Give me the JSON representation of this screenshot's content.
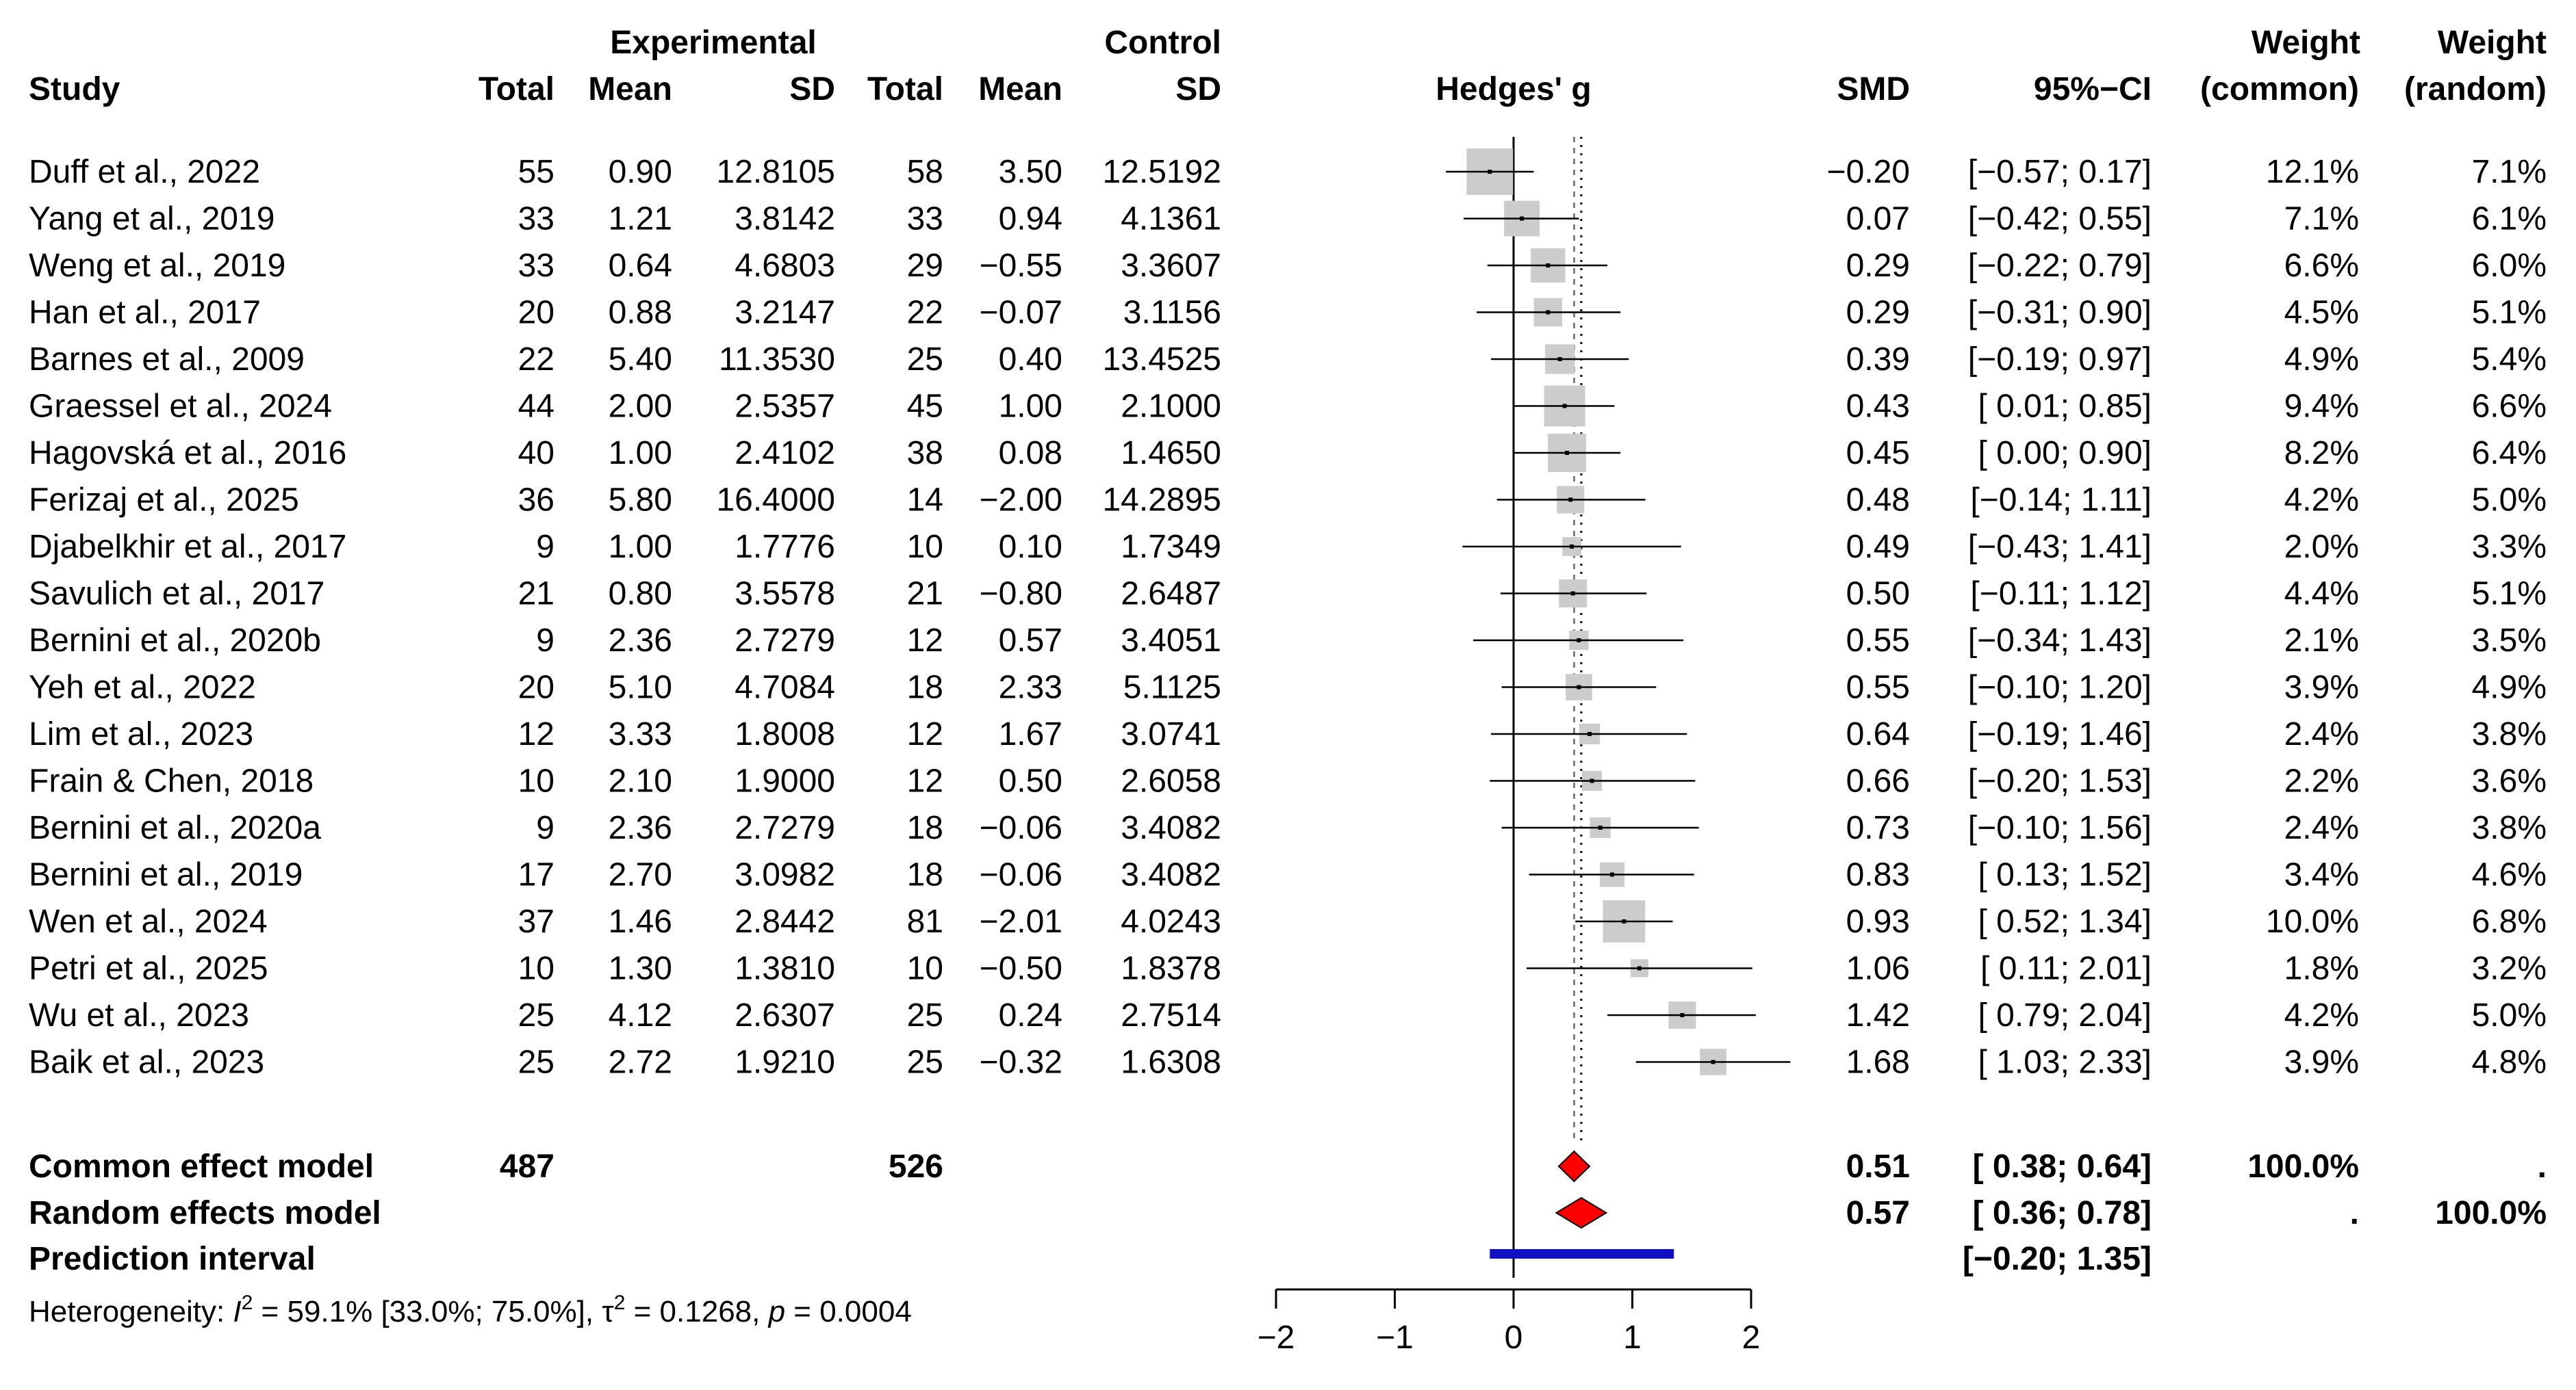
{
  "chart_data": {
    "type": "forest",
    "measure_label": "Hedges' g",
    "headers": {
      "experimental": "Experimental",
      "control": "Control",
      "study": "Study",
      "total": "Total",
      "mean": "Mean",
      "sd": "SD",
      "smd": "SMD",
      "ci": "95%−CI",
      "weight": "Weight",
      "weight_common": "(common)",
      "weight_random": "(random)"
    },
    "studies": [
      {
        "study": "Duff et al., 2022",
        "e_total": "55",
        "e_mean": "0.90",
        "e_sd": "12.8105",
        "c_total": "58",
        "c_mean": "3.50",
        "c_sd": "12.5192",
        "smd_text": "−0.20",
        "ci_text": "[−0.57; 0.17]",
        "w_common": "12.1%",
        "w_random": "7.1%",
        "smd": -0.2,
        "lo": -0.57,
        "hi": 0.17,
        "weight": 12.1
      },
      {
        "study": "Yang et al., 2019",
        "e_total": "33",
        "e_mean": "1.21",
        "e_sd": "3.8142",
        "c_total": "33",
        "c_mean": "0.94",
        "c_sd": "4.1361",
        "smd_text": "0.07",
        "ci_text": "[−0.42; 0.55]",
        "w_common": "7.1%",
        "w_random": "6.1%",
        "smd": 0.07,
        "lo": -0.42,
        "hi": 0.55,
        "weight": 7.1
      },
      {
        "study": "Weng et al., 2019",
        "e_total": "33",
        "e_mean": "0.64",
        "e_sd": "4.6803",
        "c_total": "29",
        "c_mean": "−0.55",
        "c_sd": "3.3607",
        "smd_text": "0.29",
        "ci_text": "[−0.22; 0.79]",
        "w_common": "6.6%",
        "w_random": "6.0%",
        "smd": 0.29,
        "lo": -0.22,
        "hi": 0.79,
        "weight": 6.6
      },
      {
        "study": "Han et al., 2017",
        "e_total": "20",
        "e_mean": "0.88",
        "e_sd": "3.2147",
        "c_total": "22",
        "c_mean": "−0.07",
        "c_sd": "3.1156",
        "smd_text": "0.29",
        "ci_text": "[−0.31; 0.90]",
        "w_common": "4.5%",
        "w_random": "5.1%",
        "smd": 0.29,
        "lo": -0.31,
        "hi": 0.9,
        "weight": 4.5
      },
      {
        "study": "Barnes et al., 2009",
        "e_total": "22",
        "e_mean": "5.40",
        "e_sd": "11.3530",
        "c_total": "25",
        "c_mean": "0.40",
        "c_sd": "13.4525",
        "smd_text": "0.39",
        "ci_text": "[−0.19; 0.97]",
        "w_common": "4.9%",
        "w_random": "5.4%",
        "smd": 0.39,
        "lo": -0.19,
        "hi": 0.97,
        "weight": 4.9
      },
      {
        "study": "Graessel et al., 2024",
        "e_total": "44",
        "e_mean": "2.00",
        "e_sd": "2.5357",
        "c_total": "45",
        "c_mean": "1.00",
        "c_sd": "2.1000",
        "smd_text": "0.43",
        "ci_text": "[ 0.01; 0.85]",
        "w_common": "9.4%",
        "w_random": "6.6%",
        "smd": 0.43,
        "lo": 0.01,
        "hi": 0.85,
        "weight": 9.4
      },
      {
        "study": "Hagovská et al., 2016",
        "e_total": "40",
        "e_mean": "1.00",
        "e_sd": "2.4102",
        "c_total": "38",
        "c_mean": "0.08",
        "c_sd": "1.4650",
        "smd_text": "0.45",
        "ci_text": "[ 0.00; 0.90]",
        "w_common": "8.2%",
        "w_random": "6.4%",
        "smd": 0.45,
        "lo": 0.0,
        "hi": 0.9,
        "weight": 8.2
      },
      {
        "study": "Ferizaj et al., 2025",
        "e_total": "36",
        "e_mean": "5.80",
        "e_sd": "16.4000",
        "c_total": "14",
        "c_mean": "−2.00",
        "c_sd": "14.2895",
        "smd_text": "0.48",
        "ci_text": "[−0.14; 1.11]",
        "w_common": "4.2%",
        "w_random": "5.0%",
        "smd": 0.48,
        "lo": -0.14,
        "hi": 1.11,
        "weight": 4.2
      },
      {
        "study": "Djabelkhir et al., 2017",
        "e_total": "9",
        "e_mean": "1.00",
        "e_sd": "1.7776",
        "c_total": "10",
        "c_mean": "0.10",
        "c_sd": "1.7349",
        "smd_text": "0.49",
        "ci_text": "[−0.43; 1.41]",
        "w_common": "2.0%",
        "w_random": "3.3%",
        "smd": 0.49,
        "lo": -0.43,
        "hi": 1.41,
        "weight": 2.0
      },
      {
        "study": "Savulich et al., 2017",
        "e_total": "21",
        "e_mean": "0.80",
        "e_sd": "3.5578",
        "c_total": "21",
        "c_mean": "−0.80",
        "c_sd": "2.6487",
        "smd_text": "0.50",
        "ci_text": "[−0.11; 1.12]",
        "w_common": "4.4%",
        "w_random": "5.1%",
        "smd": 0.5,
        "lo": -0.11,
        "hi": 1.12,
        "weight": 4.4
      },
      {
        "study": "Bernini et al., 2020b",
        "e_total": "9",
        "e_mean": "2.36",
        "e_sd": "2.7279",
        "c_total": "12",
        "c_mean": "0.57",
        "c_sd": "3.4051",
        "smd_text": "0.55",
        "ci_text": "[−0.34; 1.43]",
        "w_common": "2.1%",
        "w_random": "3.5%",
        "smd": 0.55,
        "lo": -0.34,
        "hi": 1.43,
        "weight": 2.1
      },
      {
        "study": "Yeh et al., 2022",
        "e_total": "20",
        "e_mean": "5.10",
        "e_sd": "4.7084",
        "c_total": "18",
        "c_mean": "2.33",
        "c_sd": "5.1125",
        "smd_text": "0.55",
        "ci_text": "[−0.10; 1.20]",
        "w_common": "3.9%",
        "w_random": "4.9%",
        "smd": 0.55,
        "lo": -0.1,
        "hi": 1.2,
        "weight": 3.9
      },
      {
        "study": "Lim et al., 2023",
        "e_total": "12",
        "e_mean": "3.33",
        "e_sd": "1.8008",
        "c_total": "12",
        "c_mean": "1.67",
        "c_sd": "3.0741",
        "smd_text": "0.64",
        "ci_text": "[−0.19; 1.46]",
        "w_common": "2.4%",
        "w_random": "3.8%",
        "smd": 0.64,
        "lo": -0.19,
        "hi": 1.46,
        "weight": 2.4
      },
      {
        "study": "Frain & Chen, 2018",
        "e_total": "10",
        "e_mean": "2.10",
        "e_sd": "1.9000",
        "c_total": "12",
        "c_mean": "0.50",
        "c_sd": "2.6058",
        "smd_text": "0.66",
        "ci_text": "[−0.20; 1.53]",
        "w_common": "2.2%",
        "w_random": "3.6%",
        "smd": 0.66,
        "lo": -0.2,
        "hi": 1.53,
        "weight": 2.2
      },
      {
        "study": "Bernini et al., 2020a",
        "e_total": "9",
        "e_mean": "2.36",
        "e_sd": "2.7279",
        "c_total": "18",
        "c_mean": "−0.06",
        "c_sd": "3.4082",
        "smd_text": "0.73",
        "ci_text": "[−0.10; 1.56]",
        "w_common": "2.4%",
        "w_random": "3.8%",
        "smd": 0.73,
        "lo": -0.1,
        "hi": 1.56,
        "weight": 2.4
      },
      {
        "study": "Bernini et al., 2019",
        "e_total": "17",
        "e_mean": "2.70",
        "e_sd": "3.0982",
        "c_total": "18",
        "c_mean": "−0.06",
        "c_sd": "3.4082",
        "smd_text": "0.83",
        "ci_text": "[ 0.13; 1.52]",
        "w_common": "3.4%",
        "w_random": "4.6%",
        "smd": 0.83,
        "lo": 0.13,
        "hi": 1.52,
        "weight": 3.4
      },
      {
        "study": "Wen et al., 2024",
        "e_total": "37",
        "e_mean": "1.46",
        "e_sd": "2.8442",
        "c_total": "81",
        "c_mean": "−2.01",
        "c_sd": "4.0243",
        "smd_text": "0.93",
        "ci_text": "[ 0.52; 1.34]",
        "w_common": "10.0%",
        "w_random": "6.8%",
        "smd": 0.93,
        "lo": 0.52,
        "hi": 1.34,
        "weight": 10.0
      },
      {
        "study": "Petri et al., 2025",
        "e_total": "10",
        "e_mean": "1.30",
        "e_sd": "1.3810",
        "c_total": "10",
        "c_mean": "−0.50",
        "c_sd": "1.8378",
        "smd_text": "1.06",
        "ci_text": "[ 0.11; 2.01]",
        "w_common": "1.8%",
        "w_random": "3.2%",
        "smd": 1.06,
        "lo": 0.11,
        "hi": 2.01,
        "weight": 1.8
      },
      {
        "study": "Wu et al., 2023",
        "e_total": "25",
        "e_mean": "4.12",
        "e_sd": "2.6307",
        "c_total": "25",
        "c_mean": "0.24",
        "c_sd": "2.7514",
        "smd_text": "1.42",
        "ci_text": "[ 0.79; 2.04]",
        "w_common": "4.2%",
        "w_random": "5.0%",
        "smd": 1.42,
        "lo": 0.79,
        "hi": 2.04,
        "weight": 4.2
      },
      {
        "study": "Baik et al., 2023",
        "e_total": "25",
        "e_mean": "2.72",
        "e_sd": "1.9210",
        "c_total": "25",
        "c_mean": "−0.32",
        "c_sd": "1.6308",
        "smd_text": "1.68",
        "ci_text": "[ 1.03; 2.33]",
        "w_common": "3.9%",
        "w_random": "4.8%",
        "smd": 1.68,
        "lo": 1.03,
        "hi": 2.33,
        "weight": 3.9
      }
    ],
    "common_model": {
      "label": "Common effect model",
      "e_total": "487",
      "c_total": "526",
      "smd_text": "0.51",
      "ci_text": "[ 0.38; 0.64]",
      "w_common": "100.0%",
      "w_random": ".",
      "smd": 0.51,
      "lo": 0.38,
      "hi": 0.64
    },
    "random_model": {
      "label": "Random effects model",
      "smd_text": "0.57",
      "ci_text": "[ 0.36; 0.78]",
      "w_common": ".",
      "w_random": "100.0%",
      "smd": 0.57,
      "lo": 0.36,
      "hi": 0.78
    },
    "prediction_interval": {
      "label": "Prediction interval",
      "ci_text": "[−0.20; 1.35]",
      "lo": -0.2,
      "hi": 1.35
    },
    "heterogeneity": {
      "prefix": "Heterogeneity: ",
      "i2_symbol": "I",
      "i2_text": " = 59.1% [33.0%; 75.0%], ",
      "tau2_symbol": "τ",
      "tau2_text": " = 0.1268, ",
      "p_symbol": "p",
      "p_text": " = 0.0004"
    },
    "axis": {
      "xlim": [
        -2,
        2
      ],
      "ticks": [
        -2,
        -1,
        0,
        1,
        2
      ],
      "tick_labels": [
        "−2",
        "−1",
        "0",
        "1",
        "2"
      ]
    },
    "colors": {
      "square": "#cccccc",
      "diamond": "#ff0000",
      "prediction": "#1010c0",
      "line": "#000000",
      "ref_line": "#808080"
    }
  }
}
